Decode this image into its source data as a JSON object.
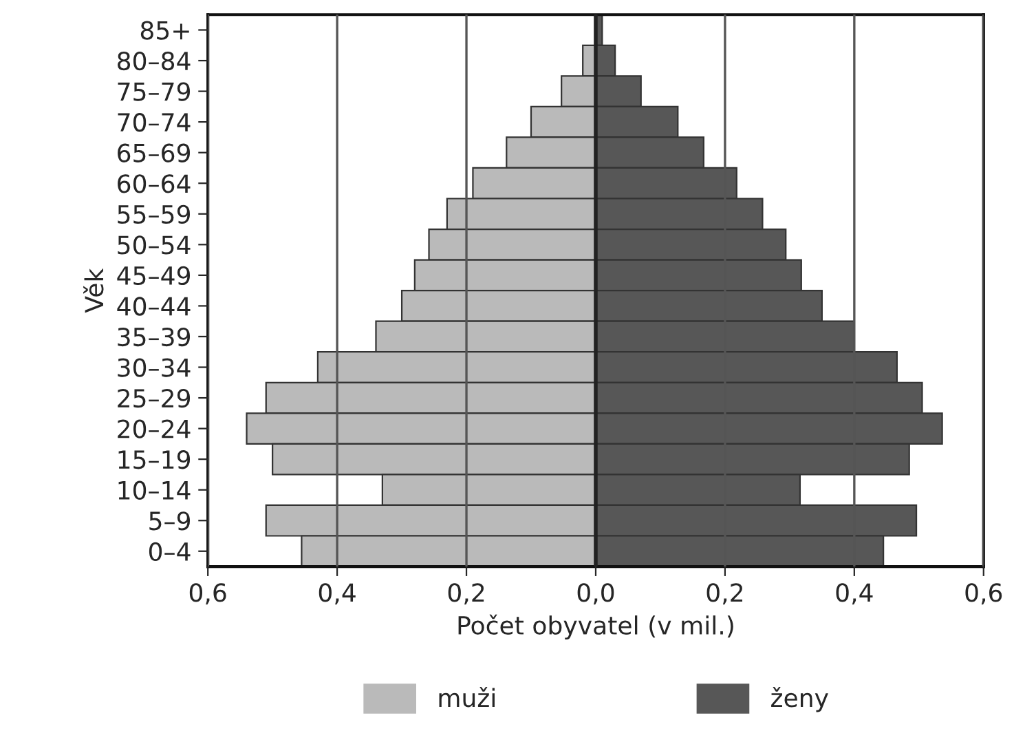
{
  "chart_data": {
    "type": "bar",
    "orientation": "horizontal",
    "stacked": true,
    "xlabel": "Počet obyvatel (v mil.)",
    "ylabel": "Věk",
    "categories": [
      "85+",
      "80–84",
      "75–79",
      "70–74",
      "65–69",
      "60–64",
      "55–59",
      "50–54",
      "45–49",
      "40–44",
      "35–39",
      "30–34",
      "25–29",
      "20–24",
      "15–19",
      "10–14",
      "5–9",
      "0–4"
    ],
    "series": [
      {
        "name": "muži",
        "color": "#bababa",
        "values": [
          null,
          -0.02,
          -0.053,
          -0.1,
          -0.138,
          -0.19,
          -0.23,
          -0.258,
          -0.28,
          -0.3,
          -0.34,
          -0.43,
          -0.51,
          -0.54,
          -0.5,
          -0.33,
          -0.51,
          -0.455
        ]
      },
      {
        "name": "ženy",
        "color": "#575757",
        "values": [
          0.01,
          0.03,
          0.07,
          0.127,
          0.167,
          0.218,
          0.258,
          0.294,
          0.318,
          0.35,
          0.4,
          0.466,
          0.505,
          0.536,
          0.485,
          0.316,
          0.496,
          0.445
        ]
      }
    ],
    "xlim": [
      -0.6,
      0.6
    ],
    "xticks": [
      {
        "value": -0.6,
        "label": "0,6"
      },
      {
        "value": -0.4,
        "label": "0,4"
      },
      {
        "value": -0.2,
        "label": "0,2"
      },
      {
        "value": 0,
        "label": "0,0"
      },
      {
        "value": 0.2,
        "label": "0,2"
      },
      {
        "value": 0.4,
        "label": "0,4"
      },
      {
        "value": 0.6,
        "label": "0,6"
      }
    ],
    "grid": "x",
    "legend": "bottom"
  }
}
